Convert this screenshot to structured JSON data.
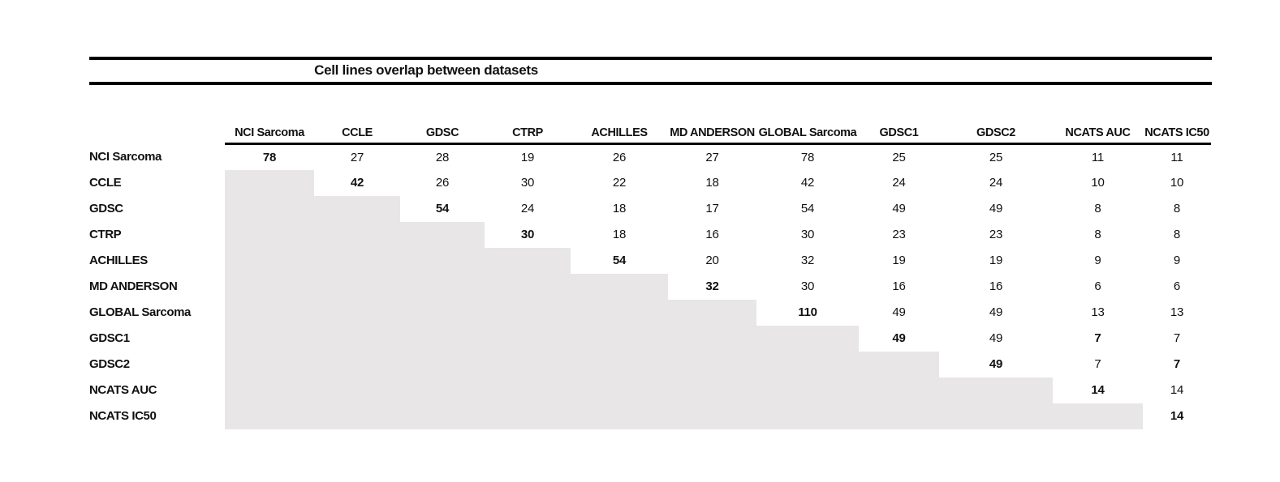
{
  "header": {
    "title": "Cell lines overlap between datasets"
  },
  "colors": {
    "page_background": "#ffffff",
    "rule": "#000000",
    "text": "#111111",
    "lower_triangle_shade": "#e8e6e6"
  },
  "table": {
    "columns": [
      "NCI Sarcoma",
      "CCLE",
      "GDSC",
      "CTRP",
      "ACHILLES",
      "MD ANDERSON",
      "GLOBAL Sarcoma",
      "GDSC1",
      "GDSC2",
      "NCATS AUC",
      "NCATS IC50"
    ],
    "rows": [
      {
        "label": "NCI Sarcoma",
        "cells": [
          {
            "v": "78",
            "b": true
          },
          {
            "v": "27"
          },
          {
            "v": "28"
          },
          {
            "v": "19"
          },
          {
            "v": "26"
          },
          {
            "v": "27"
          },
          {
            "v": "78"
          },
          {
            "v": "25"
          },
          {
            "v": "25"
          },
          {
            "v": "11"
          },
          {
            "v": "11"
          }
        ]
      },
      {
        "label": "CCLE",
        "cells": [
          null,
          {
            "v": "42",
            "b": true
          },
          {
            "v": "26"
          },
          {
            "v": "30"
          },
          {
            "v": "22"
          },
          {
            "v": "18"
          },
          {
            "v": "42"
          },
          {
            "v": "24"
          },
          {
            "v": "24"
          },
          {
            "v": "10"
          },
          {
            "v": "10"
          }
        ]
      },
      {
        "label": "GDSC",
        "cells": [
          null,
          null,
          {
            "v": "54",
            "b": true
          },
          {
            "v": "24"
          },
          {
            "v": "18"
          },
          {
            "v": "17"
          },
          {
            "v": "54"
          },
          {
            "v": "49"
          },
          {
            "v": "49"
          },
          {
            "v": "8"
          },
          {
            "v": "8"
          }
        ]
      },
      {
        "label": "CTRP",
        "cells": [
          null,
          null,
          null,
          {
            "v": "30",
            "b": true
          },
          {
            "v": "18"
          },
          {
            "v": "16"
          },
          {
            "v": "30"
          },
          {
            "v": "23"
          },
          {
            "v": "23"
          },
          {
            "v": "8"
          },
          {
            "v": "8"
          }
        ]
      },
      {
        "label": "ACHILLES",
        "cells": [
          null,
          null,
          null,
          null,
          {
            "v": "54",
            "b": true
          },
          {
            "v": "20"
          },
          {
            "v": "32"
          },
          {
            "v": "19"
          },
          {
            "v": "19"
          },
          {
            "v": "9"
          },
          {
            "v": "9"
          }
        ]
      },
      {
        "label": "MD ANDERSON",
        "cells": [
          null,
          null,
          null,
          null,
          null,
          {
            "v": "32",
            "b": true
          },
          {
            "v": "30"
          },
          {
            "v": "16"
          },
          {
            "v": "16"
          },
          {
            "v": "6"
          },
          {
            "v": "6"
          }
        ]
      },
      {
        "label": "GLOBAL Sarcoma",
        "cells": [
          null,
          null,
          null,
          null,
          null,
          null,
          {
            "v": "110",
            "b": true
          },
          {
            "v": "49"
          },
          {
            "v": "49"
          },
          {
            "v": "13"
          },
          {
            "v": "13"
          }
        ]
      },
      {
        "label": "GDSC1",
        "cells": [
          null,
          null,
          null,
          null,
          null,
          null,
          null,
          {
            "v": "49",
            "b": true
          },
          {
            "v": "49"
          },
          {
            "v": "7",
            "b": true
          },
          {
            "v": "7"
          }
        ]
      },
      {
        "label": "GDSC2",
        "cells": [
          null,
          null,
          null,
          null,
          null,
          null,
          null,
          null,
          {
            "v": "49",
            "b": true
          },
          {
            "v": "7"
          },
          {
            "v": "7",
            "b": true
          }
        ]
      },
      {
        "label": "NCATS AUC",
        "cells": [
          null,
          null,
          null,
          null,
          null,
          null,
          null,
          null,
          null,
          {
            "v": "14",
            "b": true
          },
          {
            "v": "14"
          }
        ]
      },
      {
        "label": "NCATS IC50",
        "cells": [
          null,
          null,
          null,
          null,
          null,
          null,
          null,
          null,
          null,
          null,
          {
            "v": "14",
            "b": true
          }
        ]
      }
    ]
  }
}
